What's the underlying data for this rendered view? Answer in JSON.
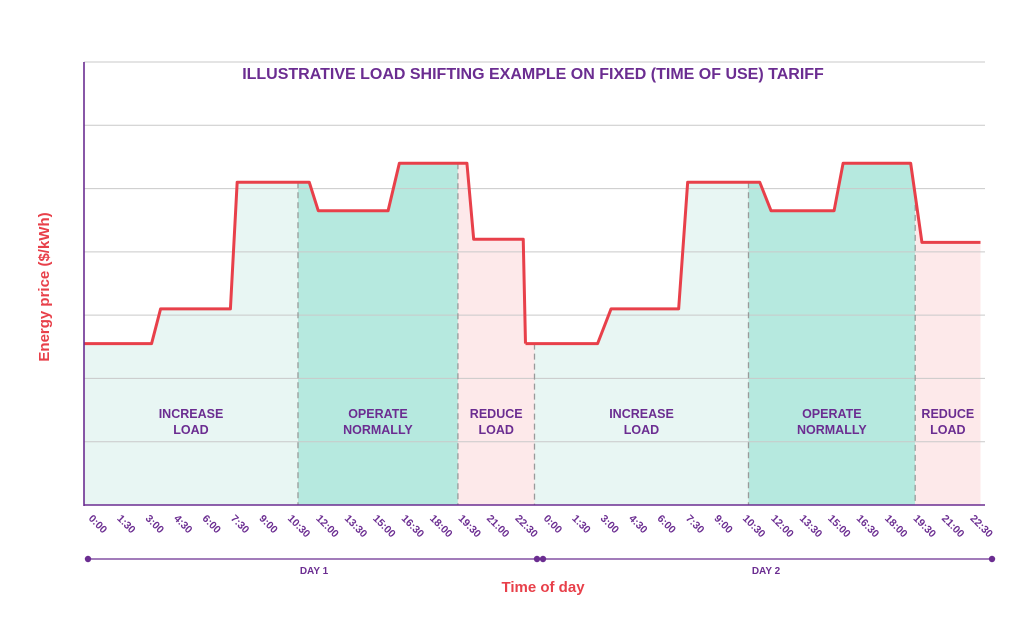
{
  "chart_data": {
    "type": "line",
    "title": "ILLUSTRATIVE LOAD SHIFTING EXAMPLE ON FIXED (TIME OF USE) TARIFF",
    "xlabel": "Time of day",
    "ylabel": "Energy price ($/kWh)",
    "x_tick_labels": [
      "0:00",
      "1:30",
      "3:00",
      "4:30",
      "6:00",
      "7:30",
      "9:00",
      "10:30",
      "12:00",
      "13:30",
      "15:00",
      "16:30",
      "18:00",
      "19:30",
      "21:00",
      "22:30",
      "0:00",
      "1:30",
      "3:00",
      "4:30",
      "6:00",
      "7:30",
      "9:00",
      "10:30",
      "12:00",
      "13:30",
      "15:00",
      "16:30",
      "18:00",
      "19:30",
      "21:00",
      "22:30"
    ],
    "day_labels": [
      "DAY 1",
      "DAY 2"
    ],
    "grid": true,
    "y_tick_values_shown": false,
    "ylim": [
      0,
      7
    ],
    "series": [
      {
        "x": [
          0,
          3.0,
          3.4,
          6.5,
          6.8,
          10.0,
          10.4,
          13.5,
          14.0,
          17.0,
          17.3,
          19.5,
          19.6
        ],
        "y": [
          2.55,
          2.55,
          3.1,
          3.1,
          5.1,
          5.1,
          4.65,
          4.65,
          5.4,
          5.4,
          4.2,
          4.2,
          2.55
        ],
        "color": "#e8404a"
      },
      {
        "x": [
          19.6,
          22.8,
          23.4,
          26.4,
          26.8,
          30.0,
          30.5,
          33.3,
          33.7,
          36.7,
          37.2,
          39.8
        ],
        "y": [
          2.55,
          2.55,
          3.1,
          3.1,
          5.1,
          5.1,
          4.65,
          4.65,
          5.4,
          5.4,
          4.15,
          4.15
        ],
        "color": "#e8404a"
      }
    ],
    "regions": [
      {
        "label": [
          "INCREASE",
          "LOAD"
        ],
        "x_start": 0,
        "x_end": 9.5,
        "color": "#e8f6f3"
      },
      {
        "label": [
          "OPERATE",
          "NORMALLY"
        ],
        "x_start": 9.5,
        "x_end": 16.6,
        "color": "#b6e9df"
      },
      {
        "label": [
          "REDUCE",
          "LOAD"
        ],
        "x_start": 16.6,
        "x_end": 20.0,
        "color": "#fde9ea"
      },
      {
        "label": [
          "INCREASE",
          "LOAD"
        ],
        "x_start": 20.0,
        "x_end": 29.5,
        "color": "#e8f6f3"
      },
      {
        "label": [
          "OPERATE",
          "NORMALLY"
        ],
        "x_start": 29.5,
        "x_end": 36.9,
        "color": "#b6e9df"
      },
      {
        "label": [
          "REDUCE",
          "LOAD"
        ],
        "x_start": 36.9,
        "x_end": 39.8,
        "color": "#fde9ea"
      }
    ]
  },
  "colors": {
    "title": "#6b2d91",
    "axis": "#6b2d91",
    "label": "#e8404a",
    "line": "#e8404a",
    "grid": "#c9c9c9",
    "region_text": "#6b2d91",
    "divider": "#9a9a9a"
  }
}
